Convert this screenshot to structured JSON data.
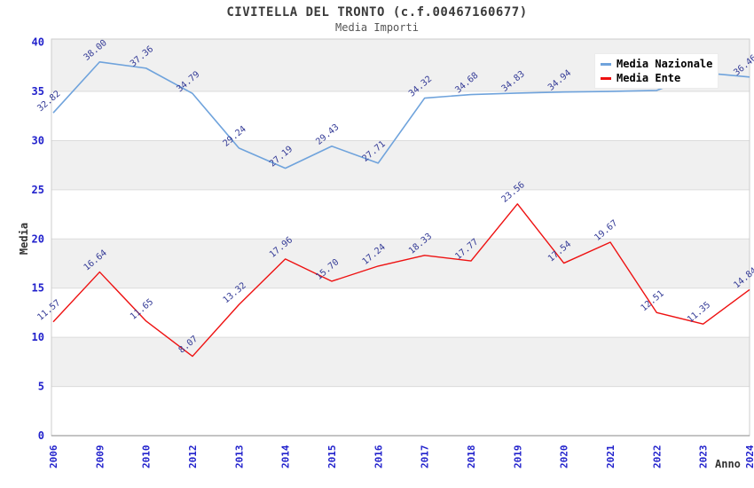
{
  "chart_data": {
    "type": "line",
    "title": "CIVITELLA DEL TRONTO (c.f.00467160677)",
    "subtitle": "Media Importi",
    "xlabel": "Anno",
    "ylabel": "Media",
    "ylim": [
      0,
      40
    ],
    "yticks": [
      0,
      5,
      10,
      15,
      20,
      25,
      30,
      35,
      40
    ],
    "grid": "horizontal-bands-alternating",
    "legend_position": "top-right",
    "categories": [
      "2006",
      "2009",
      "2010",
      "2012",
      "2013",
      "2014",
      "2015",
      "2016",
      "2017",
      "2018",
      "2019",
      "2020",
      "2021",
      "2022",
      "2023",
      "2024"
    ],
    "series": [
      {
        "name": "Media Nazionale",
        "color": "#6fa3dc",
        "values": [
          32.82,
          38.0,
          37.36,
          34.79,
          29.24,
          27.19,
          29.43,
          27.71,
          34.32,
          34.68,
          34.83,
          34.94,
          35.0,
          35.1,
          36.9,
          36.46
        ],
        "labels": [
          "32.82",
          "38.00",
          "37.36",
          "34.79",
          "29.24",
          "27.19",
          "29.43",
          "27.71",
          "34.32",
          "34.68",
          "34.83",
          "34.94",
          "",
          "",
          "",
          "36.46"
        ]
      },
      {
        "name": "Media Ente",
        "color": "#ee1111",
        "values": [
          11.57,
          16.64,
          11.65,
          8.07,
          13.32,
          17.96,
          15.7,
          17.24,
          18.33,
          17.77,
          23.56,
          17.54,
          19.67,
          12.51,
          11.35,
          14.84
        ],
        "labels": [
          "11.57",
          "16.64",
          "11.65",
          "8.07",
          "13.32",
          "17.96",
          "15.70",
          "17.24",
          "18.33",
          "17.77",
          "23.56",
          "17.54",
          "19.67",
          "12.51",
          "11.35",
          "14.84"
        ]
      }
    ],
    "style": {
      "band_color": "#f0f0f0",
      "grid_color": "#dcdcdc",
      "plot_border_color": "#cccccc",
      "axis_color": "#888888",
      "tick_label_color": "#2222cc",
      "data_label_color": "#333a96",
      "title_color": "#3a3a3a",
      "subtitle_color": "#555555",
      "legend_bg": "#ffffff",
      "legend_text_color": "#000000"
    }
  }
}
